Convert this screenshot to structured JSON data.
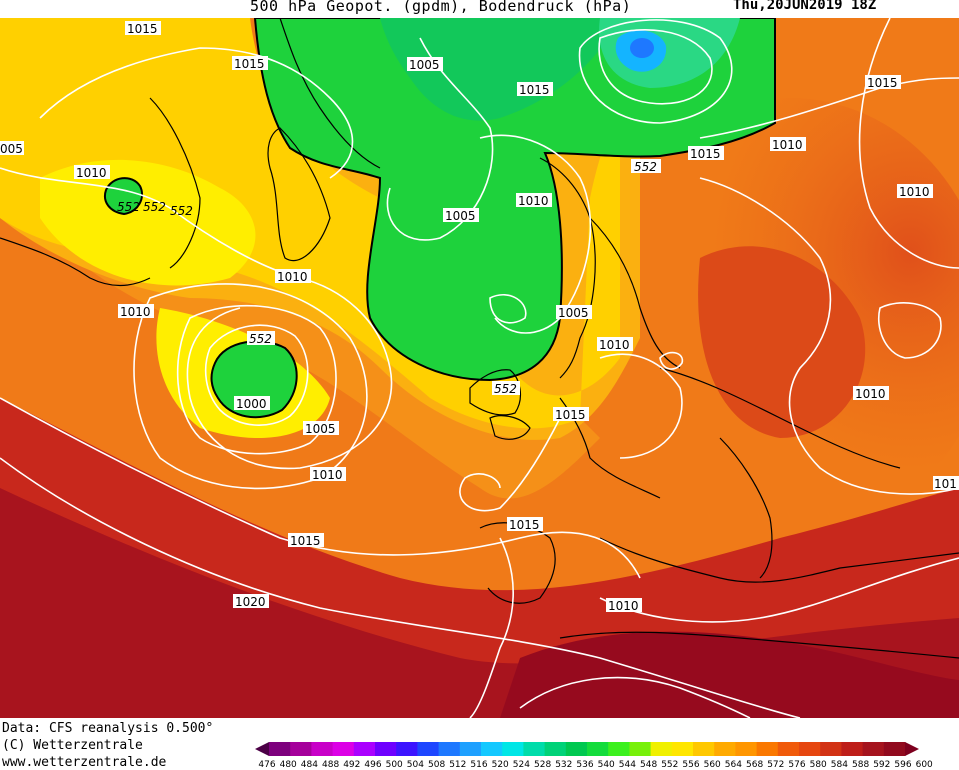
{
  "header": {
    "title": "500 hPa Geopot. (gpdm), Bodendruck (hPa)",
    "datetime": "Thu,20JUN2019 18Z"
  },
  "footer": {
    "line1": "Data: CFS reanalysis 0.500°",
    "line2": "(C) Wetterzentrale",
    "line3": "www.wetterzentrale.de"
  },
  "colorbar": {
    "levels": [
      "476",
      "480",
      "484",
      "488",
      "492",
      "496",
      "500",
      "504",
      "508",
      "512",
      "516",
      "520",
      "524",
      "528",
      "532",
      "536",
      "540",
      "544",
      "548",
      "552",
      "556",
      "560",
      "564",
      "568",
      "572",
      "576",
      "580",
      "584",
      "588",
      "592",
      "596",
      "600"
    ],
    "colors": [
      "#4b0046",
      "#7d007d",
      "#a5009b",
      "#c800c8",
      "#dc00e6",
      "#aa00ff",
      "#6e00ff",
      "#3c14ff",
      "#1e46ff",
      "#1e78ff",
      "#1ea0ff",
      "#14c8ff",
      "#00e6e6",
      "#00dcaa",
      "#00d278",
      "#00c850",
      "#14dc3c",
      "#3cf01e",
      "#78f00a",
      "#f0f000",
      "#ffe600",
      "#ffc800",
      "#ffaa00",
      "#ff9600",
      "#fa7800",
      "#f05a0a",
      "#e6460f",
      "#d23214",
      "#be1e19",
      "#a5141e",
      "#910a1e",
      "#7d001e"
    ]
  },
  "isobar_labels": [
    {
      "text": "1015"
    },
    {
      "text": "1015"
    },
    {
      "text": "1005"
    },
    {
      "text": "1015"
    },
    {
      "text": "005"
    },
    {
      "text": "1010"
    },
    {
      "text": "552"
    },
    {
      "text": "552"
    },
    {
      "text": "552"
    },
    {
      "text": "1005"
    },
    {
      "text": "1010"
    },
    {
      "text": "1015"
    },
    {
      "text": "1010"
    },
    {
      "text": "1010"
    },
    {
      "text": "552"
    },
    {
      "text": "1015"
    },
    {
      "text": "1010"
    },
    {
      "text": "1010"
    },
    {
      "text": "1005"
    },
    {
      "text": "1010"
    },
    {
      "text": "552"
    },
    {
      "text": "1000"
    },
    {
      "text": "552"
    },
    {
      "text": "1005"
    },
    {
      "text": "1015"
    },
    {
      "text": "1010"
    },
    {
      "text": "1010"
    },
    {
      "text": "101"
    },
    {
      "text": "1015"
    },
    {
      "text": "1015"
    },
    {
      "text": "1020"
    },
    {
      "text": "1010"
    }
  ]
}
